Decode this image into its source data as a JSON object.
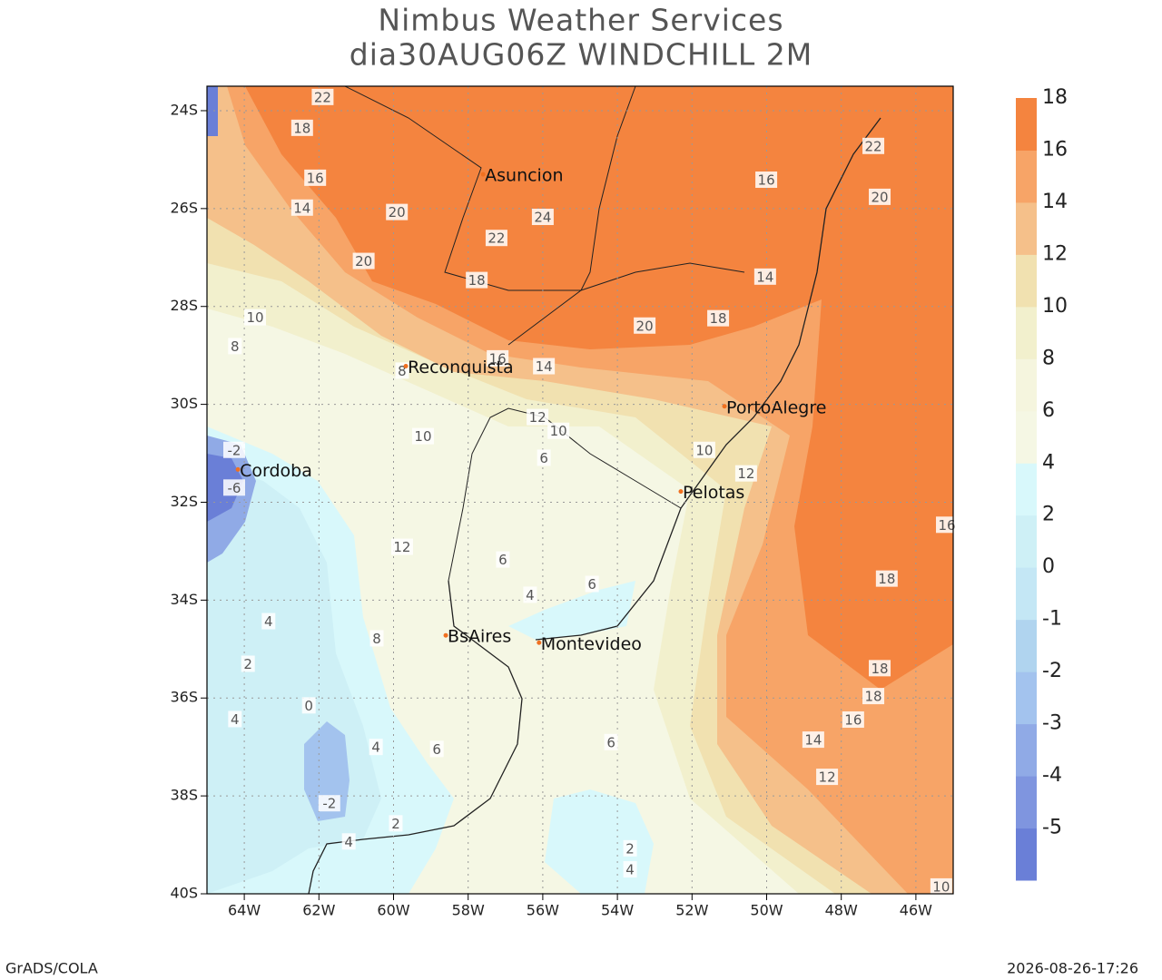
{
  "map": {
    "title": [
      "Nimbus Weather Services",
      "dia30AUG06Z WINDCHILL 2M"
    ],
    "xlim": [
      -65,
      -45
    ],
    "ylim": [
      -40,
      -23.5
    ],
    "xticks": [
      {
        "value": -64,
        "label": "64W"
      },
      {
        "value": -62,
        "label": "62W"
      },
      {
        "value": -60,
        "label": "60W"
      },
      {
        "value": -58,
        "label": "58W"
      },
      {
        "value": -56,
        "label": "56W"
      },
      {
        "value": -54,
        "label": "54W"
      },
      {
        "value": -52,
        "label": "52W"
      },
      {
        "value": -50,
        "label": "50W"
      },
      {
        "value": -48,
        "label": "48W"
      },
      {
        "value": -46,
        "label": "46W"
      }
    ],
    "yticks": [
      {
        "value": -24,
        "label": "24S"
      },
      {
        "value": -26,
        "label": "26S"
      },
      {
        "value": -28,
        "label": "28S"
      },
      {
        "value": -30,
        "label": "30S"
      },
      {
        "value": -32,
        "label": "32S"
      },
      {
        "value": -34,
        "label": "34S"
      },
      {
        "value": -36,
        "label": "36S"
      },
      {
        "value": -38,
        "label": "38S"
      },
      {
        "value": -40,
        "label": "40S"
      }
    ],
    "grid": true,
    "cities": [
      {
        "name": "Asuncion",
        "lon": -57.6,
        "lat": -25.3
      },
      {
        "name": "Reconquista",
        "lon": -59.67,
        "lat": -29.22
      },
      {
        "name": "PortoAlegre",
        "lon": -51.13,
        "lat": -30.04
      },
      {
        "name": "Cordoba",
        "lon": -64.17,
        "lat": -31.33
      },
      {
        "name": "Pelotas",
        "lon": -52.3,
        "lat": -31.78
      },
      {
        "name": "BsAires",
        "lon": -58.6,
        "lat": -34.72
      },
      {
        "name": "Montevideo",
        "lon": -56.1,
        "lat": -34.87
      }
    ],
    "contour_labels": [
      {
        "value": 22,
        "lon": -61.9,
        "lat": -23.72
      },
      {
        "value": 18,
        "lon": -62.45,
        "lat": -24.35
      },
      {
        "value": 16,
        "lon": -62.1,
        "lat": -25.37
      },
      {
        "value": 14,
        "lon": -62.45,
        "lat": -25.98
      },
      {
        "value": 20,
        "lon": -59.91,
        "lat": -26.07
      },
      {
        "value": 20,
        "lon": -60.8,
        "lat": -27.07
      },
      {
        "value": 24,
        "lon": -56.0,
        "lat": -26.17
      },
      {
        "value": 22,
        "lon": -57.24,
        "lat": -26.6
      },
      {
        "value": 18,
        "lon": -57.77,
        "lat": -27.46
      },
      {
        "value": 20,
        "lon": -53.27,
        "lat": -28.39
      },
      {
        "value": 18,
        "lon": -51.3,
        "lat": -28.24
      },
      {
        "value": 14,
        "lon": -50.04,
        "lat": -27.39
      },
      {
        "value": 20,
        "lon": -46.97,
        "lat": -25.76
      },
      {
        "value": 16,
        "lon": -50.01,
        "lat": -25.41
      },
      {
        "value": 22,
        "lon": -47.14,
        "lat": -24.72
      },
      {
        "value": 10,
        "lon": -63.71,
        "lat": -28.22
      },
      {
        "value": 8,
        "lon": -64.25,
        "lat": -28.81
      },
      {
        "value": 8,
        "lon": -59.77,
        "lat": -29.31
      },
      {
        "value": 16,
        "lon": -57.21,
        "lat": -29.06
      },
      {
        "value": 14,
        "lon": -55.97,
        "lat": -29.22
      },
      {
        "value": 12,
        "lon": -56.14,
        "lat": -30.26
      },
      {
        "value": 10,
        "lon": -55.58,
        "lat": -30.54
      },
      {
        "value": 10,
        "lon": -59.21,
        "lat": -30.65
      },
      {
        "value": 6,
        "lon": -55.97,
        "lat": -31.09
      },
      {
        "value": 10,
        "lon": -51.67,
        "lat": -30.93
      },
      {
        "value": 12,
        "lon": -50.55,
        "lat": -31.41
      },
      {
        "value": -2,
        "lon": -64.27,
        "lat": -30.93
      },
      {
        "value": -6,
        "lon": -64.27,
        "lat": -31.7
      },
      {
        "value": 6,
        "lon": -57.07,
        "lat": -33.17
      },
      {
        "value": 4,
        "lon": -56.34,
        "lat": -33.89
      },
      {
        "value": 6,
        "lon": -54.68,
        "lat": -33.67
      },
      {
        "value": 12,
        "lon": -59.77,
        "lat": -32.91
      },
      {
        "value": 8,
        "lon": -60.45,
        "lat": -34.78
      },
      {
        "value": 4,
        "lon": -63.35,
        "lat": -34.43
      },
      {
        "value": 2,
        "lon": -63.9,
        "lat": -35.3
      },
      {
        "value": 0,
        "lon": -62.27,
        "lat": -36.15
      },
      {
        "value": 4,
        "lon": -64.25,
        "lat": -36.43
      },
      {
        "value": 4,
        "lon": -60.47,
        "lat": -37.0
      },
      {
        "value": 6,
        "lon": -58.84,
        "lat": -37.04
      },
      {
        "value": -2,
        "lon": -61.72,
        "lat": -38.15
      },
      {
        "value": 2,
        "lon": -59.94,
        "lat": -38.56
      },
      {
        "value": 4,
        "lon": -61.2,
        "lat": -38.93
      },
      {
        "value": 2,
        "lon": -53.66,
        "lat": -39.07
      },
      {
        "value": 4,
        "lon": -53.66,
        "lat": -39.5
      },
      {
        "value": 6,
        "lon": -54.17,
        "lat": -36.9
      },
      {
        "value": 16,
        "lon": -47.68,
        "lat": -36.44
      },
      {
        "value": 18,
        "lon": -47.14,
        "lat": -35.96
      },
      {
        "value": 18,
        "lon": -46.97,
        "lat": -35.39
      },
      {
        "value": 18,
        "lon": -46.78,
        "lat": -33.56
      },
      {
        "value": 16,
        "lon": -45.17,
        "lat": -32.46
      },
      {
        "value": 14,
        "lon": -48.75,
        "lat": -36.85
      },
      {
        "value": 12,
        "lon": -48.38,
        "lat": -37.61
      },
      {
        "value": 10,
        "lon": -45.32,
        "lat": -39.85
      }
    ],
    "colorbar": {
      "levels": [
        -5,
        -4,
        -3,
        -2,
        -1,
        0,
        2,
        4,
        6,
        8,
        10,
        12,
        14,
        16,
        18
      ],
      "colors": [
        "#6a7fd7",
        "#7f95df",
        "#90aae6",
        "#a3c3ee",
        "#b0d4ef",
        "#c4e7f5",
        "#cef0f6",
        "#d8f8fb",
        "#f5f7e4",
        "#f5f5de",
        "#f2f0cd",
        "#f1e1b0",
        "#f5c08a",
        "#f7a467",
        "#f4843f"
      ]
    },
    "footer": {
      "left": "GrADS/COLA",
      "right": "2026-08-26-17:26"
    }
  }
}
